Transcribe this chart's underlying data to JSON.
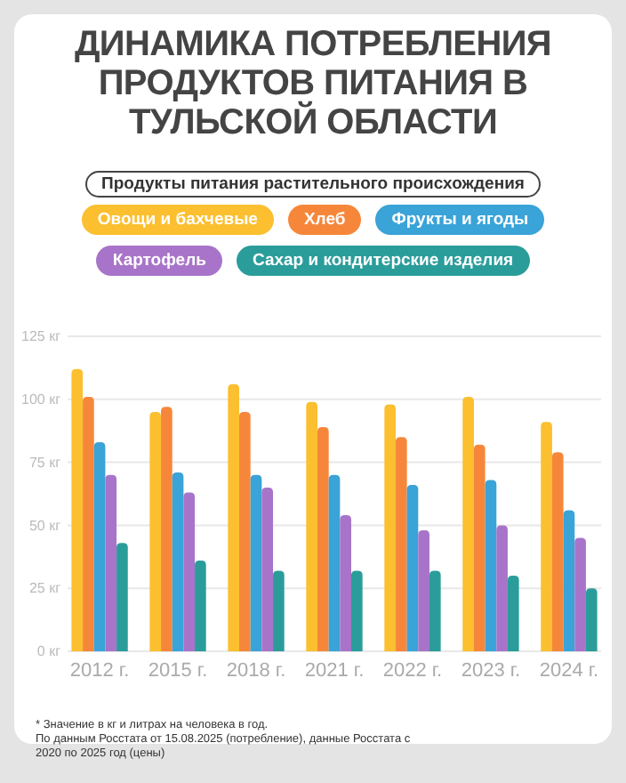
{
  "chart_data": {
    "type": "bar",
    "title": "ДИНАМИКА ПОТРЕБЛЕНИЯ ПРОДУКТОВ ПИТАНИЯ В ТУЛЬСКОЙ ОБЛАСТИ",
    "subtitle": "Продукты питания растительного происхождения",
    "categories": [
      "2012 г.",
      "2015 г.",
      "2018 г.",
      "2021 г.",
      "2022 г.",
      "2023 г.",
      "2024 г."
    ],
    "series": [
      {
        "name": "Овощи и бахчевые",
        "color": "#fbbf2f",
        "values": [
          112,
          95,
          106,
          99,
          98,
          101,
          91
        ]
      },
      {
        "name": "Хлеб",
        "color": "#f6873a",
        "values": [
          101,
          97,
          95,
          89,
          85,
          82,
          79
        ]
      },
      {
        "name": "Фрукты и ягоды",
        "color": "#3aa3d8",
        "values": [
          83,
          71,
          70,
          70,
          66,
          68,
          56
        ]
      },
      {
        "name": "Картофель",
        "color": "#a874c9",
        "values": [
          70,
          63,
          65,
          54,
          48,
          50,
          45
        ]
      },
      {
        "name": "Сахар и кондитерские изделия",
        "color": "#2a9d9b",
        "values": [
          43,
          36,
          32,
          32,
          32,
          30,
          25
        ]
      }
    ],
    "ylim": [
      0,
      125
    ],
    "yticks": [
      {
        "value": 0,
        "label": "0 кг"
      },
      {
        "value": 25,
        "label": "25 кг"
      },
      {
        "value": 50,
        "label": "50 кг"
      },
      {
        "value": 75,
        "label": "75 кг"
      },
      {
        "value": 100,
        "label": "100 кг"
      },
      {
        "value": 125,
        "label": "125 кг"
      }
    ],
    "grid": "y",
    "legend": "top",
    "annotations": [
      "* Значение в кг и литрах на человека в год.",
      "По данным Росстата от 15.08.2025 (потребление), данные Росстата с 2020 по 2025 год (цены)"
    ]
  }
}
